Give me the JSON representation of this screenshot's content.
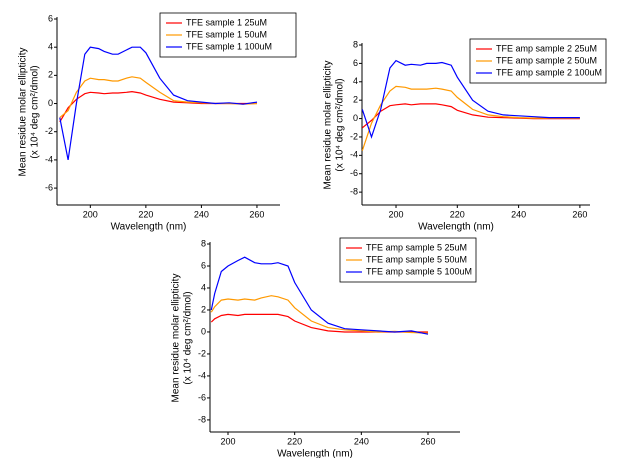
{
  "chart_data": [
    {
      "type": "line",
      "xlabel": "Wavelength (nm)",
      "ylabel": [
        "Mean residue molar ellipticity",
        "(x 10⁴ deg cm²/dmol)"
      ],
      "x": [
        189,
        192,
        195,
        198,
        200,
        203,
        205,
        208,
        210,
        213,
        215,
        218,
        220,
        225,
        230,
        235,
        240,
        245,
        250,
        255,
        260
      ],
      "xlim": [
        188,
        268.3
      ],
      "xticks": [
        200,
        220,
        240,
        260
      ],
      "ylim": [
        -7.2,
        6
      ],
      "yticks": [
        -6,
        -4,
        -2,
        0,
        2,
        4,
        6
      ],
      "legend": "upper right",
      "series": [
        {
          "name": "TFE sample 1 25uM",
          "color": "#ff0000",
          "values": [
            -1.3,
            -0.3,
            0.3,
            0.7,
            0.8,
            0.75,
            0.7,
            0.75,
            0.75,
            0.8,
            0.85,
            0.75,
            0.6,
            0.3,
            0.1,
            0.05,
            0,
            0,
            0,
            0,
            0
          ]
        },
        {
          "name": "TFE sample 1 50uM",
          "color": "#ff9900",
          "values": [
            -1.0,
            -0.5,
            0.8,
            1.6,
            1.8,
            1.7,
            1.7,
            1.6,
            1.6,
            1.8,
            1.9,
            1.8,
            1.5,
            0.8,
            0.2,
            0.1,
            0.05,
            0,
            0,
            -0.05,
            0
          ]
        },
        {
          "name": "TFE sample 1 100uM",
          "color": "#0000ff",
          "values": [
            -1,
            -4,
            0,
            3.5,
            4.0,
            3.9,
            3.7,
            3.5,
            3.5,
            3.8,
            4.0,
            4.0,
            3.6,
            1.8,
            0.6,
            0.2,
            0.1,
            0,
            0.05,
            -0.05,
            0.1
          ]
        }
      ]
    },
    {
      "type": "line",
      "xlabel": "Wavelength (nm)",
      "ylabel": [
        "Mean residue molar ellipticity",
        "(x 10⁴ deg cm²/dmol)"
      ],
      "x": [
        189,
        192,
        195,
        198,
        200,
        203,
        205,
        208,
        210,
        213,
        215,
        218,
        220,
        225,
        230,
        235,
        240,
        245,
        250,
        255,
        260
      ],
      "xlim": [
        188.9,
        263.3
      ],
      "xticks": [
        200,
        220,
        240,
        260
      ],
      "ylim": [
        -9.4,
        8
      ],
      "yticks": [
        -8,
        -6,
        -4,
        -2,
        0,
        2,
        4,
        6,
        8
      ],
      "legend": "upper right",
      "series": [
        {
          "name": "TFE amp sample 2 25uM",
          "color": "#ff0000",
          "values": [
            -1,
            -0.2,
            0.8,
            1.4,
            1.5,
            1.6,
            1.5,
            1.6,
            1.6,
            1.6,
            1.5,
            1.3,
            0.9,
            0.4,
            0.15,
            0.1,
            0.05,
            0,
            0,
            0,
            0
          ]
        },
        {
          "name": "TFE amp sample 2 50uM",
          "color": "#ff9900",
          "values": [
            -3.5,
            -0.5,
            1.5,
            3.0,
            3.5,
            3.4,
            3.2,
            3.2,
            3.2,
            3.3,
            3.2,
            3.0,
            2.3,
            1.0,
            0.4,
            0.2,
            0.1,
            0.05,
            0.05,
            0.05,
            0.05
          ]
        },
        {
          "name": "TFE amp sample 2 100uM",
          "color": "#0000ff",
          "values": [
            1,
            -2,
            1,
            5.5,
            6.3,
            5.8,
            5.9,
            5.8,
            6.0,
            6.0,
            6.1,
            5.8,
            4.5,
            2,
            0.8,
            0.4,
            0.3,
            0.2,
            0.1,
            0.1,
            0.1
          ]
        }
      ]
    },
    {
      "type": "line",
      "xlabel": "Wavelength (nm)",
      "ylabel": [
        "Mean residue molar ellipticity",
        "(x 10⁴ deg cm²/dmol)"
      ],
      "x": [
        195,
        196,
        198,
        200,
        203,
        205,
        208,
        210,
        213,
        215,
        218,
        220,
        225,
        230,
        235,
        240,
        245,
        250,
        255,
        260
      ],
      "xlim": [
        194.6,
        269.6
      ],
      "xticks": [
        200,
        220,
        240,
        260
      ],
      "ylim": [
        -9.1,
        8
      ],
      "yticks": [
        -8,
        -6,
        -4,
        -2,
        0,
        2,
        4,
        6,
        8
      ],
      "legend": "upper right",
      "series": [
        {
          "name": "TFE amp sample 5 25uM",
          "color": "#ff0000",
          "values": [
            0.9,
            1.2,
            1.5,
            1.6,
            1.5,
            1.6,
            1.6,
            1.6,
            1.6,
            1.6,
            1.4,
            1.0,
            0.4,
            0.1,
            0,
            0,
            0,
            0,
            0,
            0
          ]
        },
        {
          "name": "TFE amp sample 5 50uM",
          "color": "#ff9900",
          "values": [
            1.8,
            2.3,
            2.9,
            3.0,
            2.9,
            3.0,
            2.9,
            3.1,
            3.3,
            3.2,
            2.9,
            2.2,
            1.0,
            0.4,
            0.2,
            0.1,
            0,
            0.05,
            -0.05,
            -0.1
          ]
        },
        {
          "name": "TFE amp sample 5 100uM",
          "color": "#0000ff",
          "values": [
            2,
            3.5,
            5.5,
            6.0,
            6.5,
            6.8,
            6.3,
            6.2,
            6.2,
            6.3,
            6.0,
            4.5,
            2.0,
            0.8,
            0.3,
            0.2,
            0.1,
            0,
            0.1,
            -0.2
          ]
        }
      ]
    }
  ]
}
